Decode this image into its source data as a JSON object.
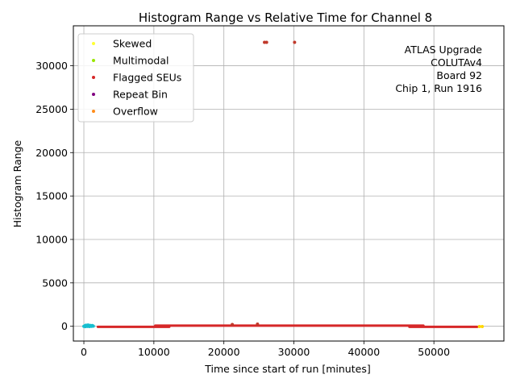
{
  "chart_data": {
    "type": "scatter",
    "title": "Histogram Range vs Relative Time for Channel 8",
    "xlabel": "Time since start of run [minutes]",
    "ylabel": "Histogram Range",
    "xlim": [
      -1500,
      60000
    ],
    "ylim": [
      -1700,
      34600
    ],
    "xticks": [
      0,
      10000,
      20000,
      30000,
      40000,
      50000
    ],
    "xtick_labels": [
      "0",
      "10000",
      "20000",
      "30000",
      "40000",
      "50000"
    ],
    "yticks": [
      0,
      5000,
      10000,
      15000,
      20000,
      25000,
      30000
    ],
    "ytick_labels": [
      "0",
      "5000",
      "10000",
      "15000",
      "20000",
      "25000",
      "30000"
    ],
    "grid": true,
    "legend_placement": "upper-left",
    "legend": [
      {
        "label": "Skewed",
        "color": "#ffff33"
      },
      {
        "label": "Multimodal",
        "color": "#99e600"
      },
      {
        "label": "Flagged SEUs",
        "color": "#d62728"
      },
      {
        "label": "Repeat Bin",
        "color": "#800080"
      },
      {
        "label": "Overflow",
        "color": "#ff8c1a"
      }
    ],
    "annotation_lines": [
      "ATLAS Upgrade",
      "COLUTAv4",
      "Board 92",
      "Chip 1, Run 1916"
    ],
    "series": [
      {
        "color": "#d62728",
        "segments": [
          {
            "x0": 2000,
            "x1": 12200,
            "y": -60
          },
          {
            "x0": 10200,
            "x1": 48500,
            "y": 70
          },
          {
            "x0": 46500,
            "x1": 56200,
            "y": -60
          }
        ]
      },
      {
        "color": "#c0392b",
        "points": [
          {
            "x": 25800,
            "y": 32700
          },
          {
            "x": 26100,
            "y": 32700
          },
          {
            "x": 30100,
            "y": 32700
          },
          {
            "x": 21200,
            "y": 200
          },
          {
            "x": 24800,
            "y": 250
          }
        ]
      },
      {
        "color": "#17becf",
        "points": [
          {
            "x": 0,
            "y": 0
          },
          {
            "x": 150,
            "y": 60
          },
          {
            "x": 300,
            "y": 120
          },
          {
            "x": 450,
            "y": 80
          },
          {
            "x": 600,
            "y": 140
          },
          {
            "x": 750,
            "y": 50
          },
          {
            "x": 900,
            "y": 100
          },
          {
            "x": 1050,
            "y": 30
          },
          {
            "x": 1200,
            "y": 90
          },
          {
            "x": 1350,
            "y": 20
          },
          {
            "x": 200,
            "y": -40
          },
          {
            "x": 500,
            "y": -20
          },
          {
            "x": 800,
            "y": -30
          },
          {
            "x": 1100,
            "y": -10
          }
        ]
      },
      {
        "color": "#ffd700",
        "points": [
          {
            "x": 56500,
            "y": -30
          },
          {
            "x": 56900,
            "y": -30
          }
        ]
      }
    ]
  }
}
